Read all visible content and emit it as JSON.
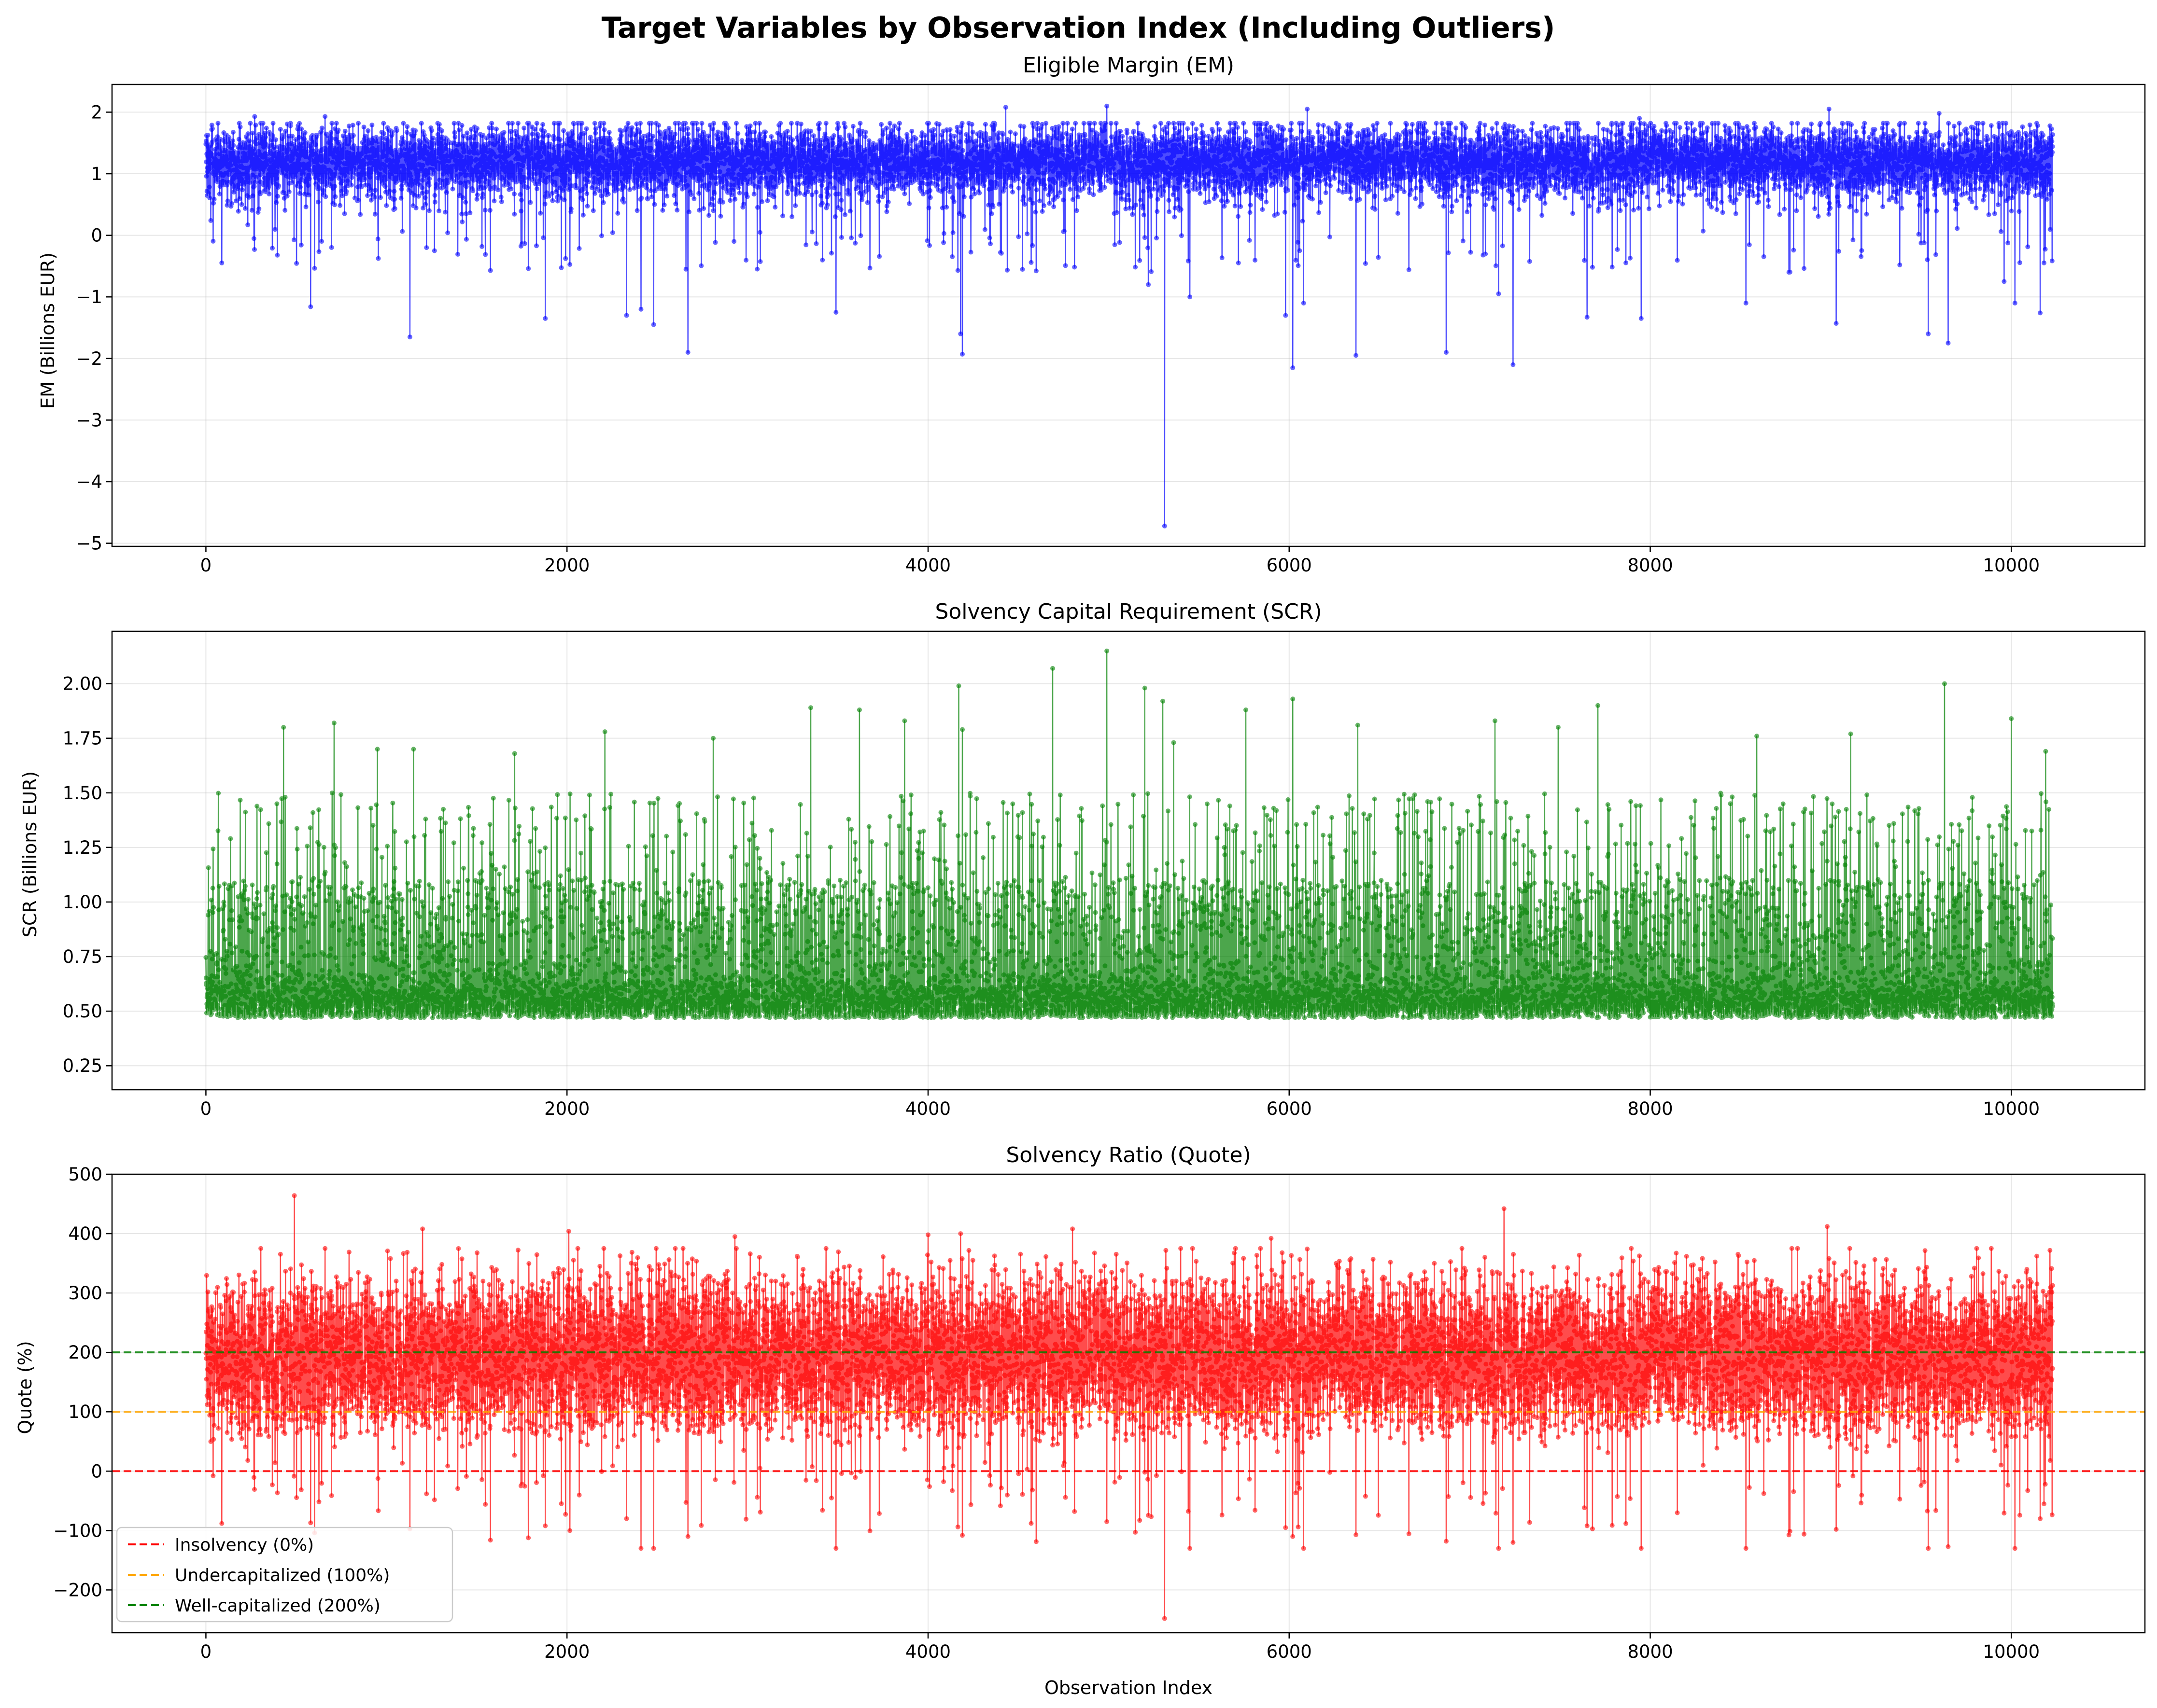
{
  "title": "Target Variables by Observation Index (Including Outliers)",
  "colors": {
    "em": "#0000ff",
    "scr": "#008000",
    "quote": "#ff0000",
    "undercap": "#ffa500",
    "wellcap": "#008000",
    "insolvency": "#ff0000"
  },
  "chart_data": [
    {
      "id": "em",
      "type": "line",
      "title": "Eligible Margin (EM)",
      "xlabel": "",
      "ylabel": "EM (Billions EUR)",
      "xlim": [
        -520,
        10740
      ],
      "ylim": [
        -5.05,
        2.45
      ],
      "xticks": [
        0,
        2000,
        4000,
        6000,
        8000,
        10000
      ],
      "yticks": [
        -5,
        -4,
        -3,
        -2,
        -1,
        0,
        1,
        2
      ],
      "ytick_labels": [
        "−5",
        "−4",
        "−3",
        "−2",
        "−1",
        "0",
        "1",
        "2"
      ],
      "grid": true,
      "n_observations": 10230,
      "series": [
        {
          "color": "#0000ff",
          "markers": true,
          "typical_range": [
            0.4,
            1.7
          ],
          "median": 1.2
        }
      ],
      "outliers": [
        {
          "x": 5310,
          "y": -4.72
        },
        {
          "x": 2670,
          "y": -1.9
        },
        {
          "x": 4190,
          "y": -1.93
        },
        {
          "x": 6020,
          "y": -2.15
        },
        {
          "x": 7240,
          "y": -2.1
        },
        {
          "x": 6370,
          "y": -1.95
        },
        {
          "x": 6870,
          "y": -1.9
        },
        {
          "x": 9650,
          "y": -1.75
        },
        {
          "x": 4990,
          "y": -1.8
        },
        {
          "x": 1130,
          "y": -1.65
        },
        {
          "x": 9540,
          "y": -1.6
        },
        {
          "x": 4180,
          "y": -1.6
        },
        {
          "x": 9030,
          "y": -1.43
        },
        {
          "x": 2480,
          "y": -1.45
        },
        {
          "x": 2330,
          "y": -1.3
        },
        {
          "x": 1880,
          "y": -1.35
        },
        {
          "x": 7650,
          "y": -1.33
        },
        {
          "x": 7950,
          "y": -1.35
        },
        {
          "x": 5980,
          "y": -1.3
        },
        {
          "x": 10160,
          "y": -1.26
        },
        {
          "x": 3490,
          "y": -1.25
        },
        {
          "x": 580,
          "y": -1.16
        },
        {
          "x": 2410,
          "y": -1.2
        },
        {
          "x": 6080,
          "y": -1.1
        },
        {
          "x": 10020,
          "y": -1.1
        },
        {
          "x": 8530,
          "y": -1.1
        },
        {
          "x": 5450,
          "y": -1.0
        },
        {
          "x": 7160,
          "y": -0.95
        },
        {
          "x": 9960,
          "y": -0.75
        },
        {
          "x": 5220,
          "y": -0.8
        }
      ],
      "peaks": [
        {
          "x": 4430,
          "y": 2.08
        },
        {
          "x": 4990,
          "y": 2.1
        },
        {
          "x": 6100,
          "y": 2.05
        },
        {
          "x": 8990,
          "y": 2.05
        },
        {
          "x": 9600,
          "y": 1.98
        },
        {
          "x": 7940,
          "y": 1.9
        },
        {
          "x": 270,
          "y": 1.93
        },
        {
          "x": 660,
          "y": 1.93
        }
      ]
    },
    {
      "id": "scr",
      "type": "line",
      "title": "Solvency Capital Requirement (SCR)",
      "xlabel": "",
      "ylabel": "SCR (Billions EUR)",
      "xlim": [
        -520,
        10740
      ],
      "ylim": [
        0.14,
        2.24
      ],
      "xticks": [
        0,
        2000,
        4000,
        6000,
        8000,
        10000
      ],
      "yticks": [
        0.25,
        0.5,
        0.75,
        1.0,
        1.25,
        1.5,
        1.75,
        2.0
      ],
      "ytick_labels": [
        "0.25",
        "0.50",
        "0.75",
        "1.00",
        "1.25",
        "1.50",
        "1.75",
        "2.00"
      ],
      "grid": true,
      "n_observations": 10230,
      "series": [
        {
          "color": "#008000",
          "markers": true,
          "typical_range": [
            0.3,
            1.3
          ],
          "median": 0.5
        }
      ],
      "peaks": [
        {
          "x": 4990,
          "y": 2.15
        },
        {
          "x": 4690,
          "y": 2.07
        },
        {
          "x": 9630,
          "y": 2.0
        },
        {
          "x": 4170,
          "y": 1.99
        },
        {
          "x": 5200,
          "y": 1.98
        },
        {
          "x": 6020,
          "y": 1.93
        },
        {
          "x": 5300,
          "y": 1.92
        },
        {
          "x": 7710,
          "y": 1.9
        },
        {
          "x": 3350,
          "y": 1.89
        },
        {
          "x": 3620,
          "y": 1.88
        },
        {
          "x": 5760,
          "y": 1.88
        },
        {
          "x": 10000,
          "y": 1.84
        },
        {
          "x": 3870,
          "y": 1.83
        },
        {
          "x": 7140,
          "y": 1.83
        },
        {
          "x": 710,
          "y": 1.82
        },
        {
          "x": 430,
          "y": 1.8
        },
        {
          "x": 6380,
          "y": 1.81
        },
        {
          "x": 7490,
          "y": 1.8
        },
        {
          "x": 4190,
          "y": 1.79
        },
        {
          "x": 2210,
          "y": 1.78
        },
        {
          "x": 9110,
          "y": 1.77
        },
        {
          "x": 8590,
          "y": 1.76
        },
        {
          "x": 2810,
          "y": 1.75
        },
        {
          "x": 5360,
          "y": 1.73
        },
        {
          "x": 1710,
          "y": 1.68
        },
        {
          "x": 950,
          "y": 1.7
        },
        {
          "x": 1150,
          "y": 1.7
        },
        {
          "x": 10190,
          "y": 1.69
        }
      ]
    },
    {
      "id": "quote",
      "type": "line",
      "title": "Solvency Ratio (Quote)",
      "xlabel": "Observation Index",
      "ylabel": "Quote (%)",
      "xlim": [
        -520,
        10740
      ],
      "ylim": [
        -272,
        500
      ],
      "xticks": [
        0,
        2000,
        4000,
        6000,
        8000,
        10000
      ],
      "yticks": [
        -200,
        -100,
        0,
        100,
        200,
        300,
        400,
        500
      ],
      "ytick_labels": [
        "−200",
        "−100",
        "0",
        "100",
        "200",
        "300",
        "400",
        "500"
      ],
      "grid": true,
      "n_observations": 10230,
      "series": [
        {
          "color": "#ff0000",
          "markers": true,
          "typical_range": [
            0,
            370
          ],
          "median": 250
        }
      ],
      "hlines": [
        {
          "y": 0,
          "color": "#ff0000",
          "label": "Insolvency (0%)"
        },
        {
          "y": 100,
          "color": "#ffa500",
          "label": "Undercapitalized (100%)"
        },
        {
          "y": 200,
          "color": "#008000",
          "label": "Well-capitalized (200%)"
        }
      ],
      "legend": "lower-left",
      "outliers": [
        {
          "x": 5310,
          "y": -248
        },
        {
          "x": 9650,
          "y": -127
        },
        {
          "x": 7240,
          "y": -120
        },
        {
          "x": 6870,
          "y": -118
        },
        {
          "x": 2670,
          "y": -110
        },
        {
          "x": 4190,
          "y": -108
        },
        {
          "x": 6370,
          "y": -107
        },
        {
          "x": 6020,
          "y": -110
        },
        {
          "x": 1130,
          "y": -97
        },
        {
          "x": 9030,
          "y": -98
        },
        {
          "x": 1880,
          "y": -92
        },
        {
          "x": 4990,
          "y": -85
        },
        {
          "x": 10160,
          "y": -80
        },
        {
          "x": 5980,
          "y": -95
        },
        {
          "x": 7650,
          "y": -92
        },
        {
          "x": 2330,
          "y": -80
        },
        {
          "x": 580,
          "y": -87
        }
      ],
      "peaks": [
        {
          "x": 490,
          "y": 464
        },
        {
          "x": 7190,
          "y": 442
        },
        {
          "x": 8980,
          "y": 412
        },
        {
          "x": 1200,
          "y": 408
        },
        {
          "x": 4800,
          "y": 408
        },
        {
          "x": 2010,
          "y": 404
        },
        {
          "x": 4180,
          "y": 400
        },
        {
          "x": 4000,
          "y": 398
        },
        {
          "x": 2930,
          "y": 395
        },
        {
          "x": 5900,
          "y": 392
        }
      ]
    }
  ]
}
